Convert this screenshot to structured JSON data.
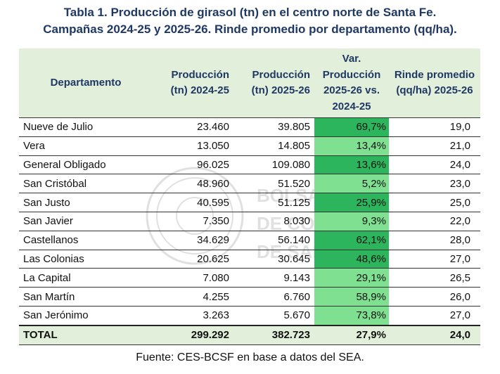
{
  "title": {
    "line1": "Tabla 1. Producción de girasol (tn) en el centro norte de Santa Fe.",
    "line2": "Campañas 2024-25 y 2025-26. Rinde promedio por departamento (qq/ha)."
  },
  "headers": {
    "dept": "Departamento",
    "prod1": "Producción (tn) 2024-25",
    "prod2": "Producción (tn) 2025-26",
    "var": "Var. Producción 2025-26 vs. 2024-25",
    "rinde": "Rinde promedio (qq/ha) 2025-26"
  },
  "rows": [
    {
      "dept": "Nueve de Julio",
      "p1": "23.460",
      "p2": "39.805",
      "var": "69,7%",
      "var_color": "#2db55d",
      "rinde": "19,0"
    },
    {
      "dept": "Vera",
      "p1": "13.050",
      "p2": "14.805",
      "var": "13,4%",
      "var_color": "#7ee090",
      "rinde": "21,0"
    },
    {
      "dept": "General Obligado",
      "p1": "96.025",
      "p2": "109.080",
      "var": "13,6%",
      "var_color": "#2db55d",
      "rinde": "24,0"
    },
    {
      "dept": "San Cristóbal",
      "p1": "48.960",
      "p2": "51.520",
      "var": "5,2%",
      "var_color": "#7ee090",
      "rinde": "23,0"
    },
    {
      "dept": "San Justo",
      "p1": "40.595",
      "p2": "51.125",
      "var": "25,9%",
      "var_color": "#2db55d",
      "rinde": "25,0"
    },
    {
      "dept": "San Javier",
      "p1": "7.350",
      "p2": "8.030",
      "var": "9,3%",
      "var_color": "#7ee090",
      "rinde": "22,0"
    },
    {
      "dept": "Castellanos",
      "p1": "34.629",
      "p2": "56.140",
      "var": "62,1%",
      "var_color": "#2db55d",
      "rinde": "28,0"
    },
    {
      "dept": "Las Colonias",
      "p1": "20.625",
      "p2": "30.645",
      "var": "48,6%",
      "var_color": "#2db55d",
      "rinde": "27,0"
    },
    {
      "dept": "La Capital",
      "p1": "7.080",
      "p2": "9.143",
      "var": "29,1%",
      "var_color": "#7ee090",
      "rinde": "26,5"
    },
    {
      "dept": "San Martín",
      "p1": "4.255",
      "p2": "6.760",
      "var": "58,9%",
      "var_color": "#7ee090",
      "rinde": "26,0"
    },
    {
      "dept": "San Jerónimo",
      "p1": "3.263",
      "p2": "5.670",
      "var": "73,8%",
      "var_color": "#7ee090",
      "rinde": "27,0"
    }
  ],
  "total": {
    "dept": "TOTAL",
    "p1": "299.292",
    "p2": "382.723",
    "var": "27,9%",
    "rinde": "24,0"
  },
  "footer": "Fuente: CES-BCSF en base a datos del SEA.",
  "watermark_text": "BOLSA DE COMERCIO DE SANTA FE"
}
